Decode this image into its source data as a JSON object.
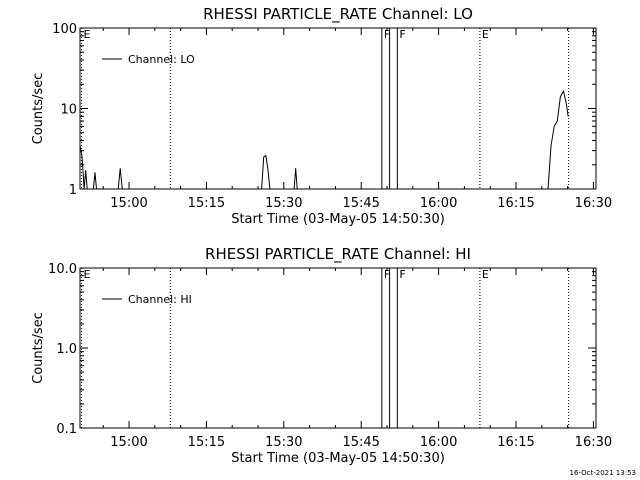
{
  "footer": {
    "timestamp": "16-Oct-2021 13:53"
  },
  "chart_data": [
    {
      "type": "line",
      "title": "RHESSI PARTICLE_RATE Channel: LO",
      "xlabel": "Start Time (03-May-05 14:50:30)",
      "ylabel": "Counts/sec",
      "y_scale": "log",
      "ylim": [
        1,
        100
      ],
      "xlim_minutes": [
        0,
        100
      ],
      "x_ticks": [
        {
          "label": "15:00",
          "t": 9.5
        },
        {
          "label": "15:15",
          "t": 24.5
        },
        {
          "label": "15:30",
          "t": 39.5
        },
        {
          "label": "15:45",
          "t": 54.5
        },
        {
          "label": "16:00",
          "t": 69.5
        },
        {
          "label": "16:15",
          "t": 84.5
        },
        {
          "label": "16:30",
          "t": 99.5
        }
      ],
      "y_ticks": [
        {
          "label": "1",
          "v": 1
        },
        {
          "label": "10",
          "v": 10
        },
        {
          "label": "100",
          "v": 100
        }
      ],
      "legend": {
        "label": "Channel: LO",
        "position": "top-left"
      },
      "markers": [
        {
          "label": "E",
          "t": 0.3,
          "style": "dotted"
        },
        {
          "label": "",
          "t": 17.5,
          "style": "dotted"
        },
        {
          "label": "F",
          "t": 58.5,
          "style": "solid"
        },
        {
          "label": "",
          "t": 60.0,
          "style": "solid"
        },
        {
          "label": "F",
          "t": 61.5,
          "style": "solid"
        },
        {
          "label": "E",
          "t": 77.5,
          "style": "dotted"
        },
        {
          "label": "",
          "t": 94.7,
          "style": "dotted"
        }
      ],
      "series": [
        {
          "name": "Channel: LO",
          "x": [
            0,
            0.4,
            0.8,
            1.1,
            1.4,
            1.7,
            2.0,
            2.3,
            2.6,
            2.9,
            3.2,
            7.4,
            7.8,
            8.2,
            35.2,
            35.6,
            36.0,
            36.4,
            36.8,
            41.5,
            41.8,
            42.1,
            90.7,
            91.3,
            91.9,
            92.5,
            93.1,
            93.7,
            94.3,
            94.6
          ],
          "y": [
            3.5,
            2.5,
            1.0,
            1.7,
            1.0,
            1.0,
            1.0,
            1.0,
            1.0,
            1.6,
            1.0,
            1.0,
            1.8,
            1.0,
            1.0,
            2.5,
            2.6,
            1.8,
            1.0,
            1.0,
            1.8,
            1.0,
            1.0,
            3.5,
            6.0,
            7.0,
            14.0,
            16.5,
            11.0,
            8.0
          ]
        }
      ]
    },
    {
      "type": "line",
      "title": "RHESSI PARTICLE_RATE Channel: HI",
      "xlabel": "Start Time (03-May-05 14:50:30)",
      "ylabel": "Counts/sec",
      "y_scale": "log",
      "ylim": [
        0.1,
        10
      ],
      "xlim_minutes": [
        0,
        100
      ],
      "x_ticks": [
        {
          "label": "15:00",
          "t": 9.5
        },
        {
          "label": "15:15",
          "t": 24.5
        },
        {
          "label": "15:30",
          "t": 39.5
        },
        {
          "label": "15:45",
          "t": 54.5
        },
        {
          "label": "16:00",
          "t": 69.5
        },
        {
          "label": "16:15",
          "t": 84.5
        },
        {
          "label": "16:30",
          "t": 99.5
        }
      ],
      "y_ticks": [
        {
          "label": "0.1",
          "v": 0.1
        },
        {
          "label": "1.0",
          "v": 1
        },
        {
          "label": "10.0",
          "v": 10
        }
      ],
      "legend": {
        "label": "Channel: HI",
        "position": "top-left"
      },
      "markers": [
        {
          "label": "E",
          "t": 0.3,
          "style": "dotted"
        },
        {
          "label": "",
          "t": 17.5,
          "style": "dotted"
        },
        {
          "label": "F",
          "t": 58.5,
          "style": "solid"
        },
        {
          "label": "",
          "t": 60.0,
          "style": "solid"
        },
        {
          "label": "F",
          "t": 61.5,
          "style": "solid"
        },
        {
          "label": "E",
          "t": 77.5,
          "style": "dotted"
        },
        {
          "label": "",
          "t": 94.7,
          "style": "dotted"
        }
      ],
      "series": [
        {
          "name": "Channel: HI",
          "x": [],
          "y": []
        }
      ]
    }
  ]
}
